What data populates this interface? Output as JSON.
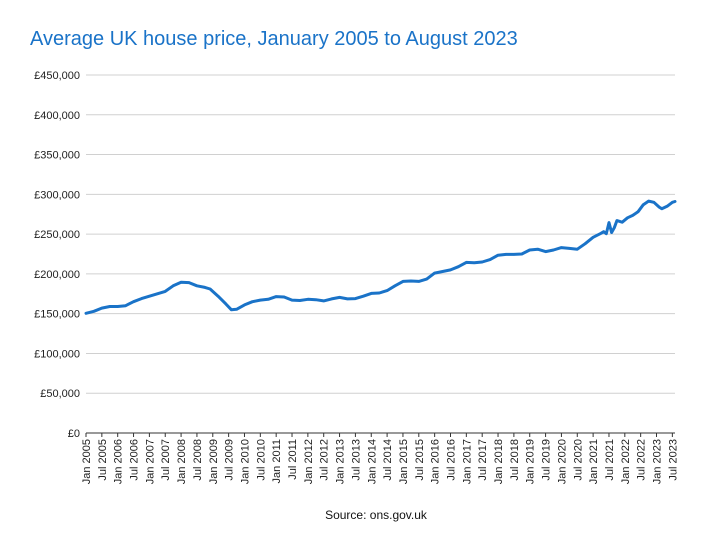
{
  "chart_data": {
    "type": "line",
    "title": "Average UK house price, January 2005 to August 2023",
    "source": "Source: ons.gov.uk",
    "xlabel": "",
    "ylabel": "",
    "ylim": [
      0,
      450000
    ],
    "yticks": [
      0,
      50000,
      100000,
      150000,
      200000,
      250000,
      300000,
      350000,
      400000,
      450000
    ],
    "ytick_labels": [
      "£0",
      "£50,000",
      "£100,000",
      "£150,000",
      "£200,000",
      "£250,000",
      "£300,000",
      "£350,000",
      "£400,000",
      "£450,000"
    ],
    "xlim_months": [
      0,
      223
    ],
    "xticks": [
      {
        "label": "Jan 2005",
        "month": 0
      },
      {
        "label": "Jul 2005",
        "month": 6
      },
      {
        "label": "Jan 2006",
        "month": 12
      },
      {
        "label": "Jul 2006",
        "month": 18
      },
      {
        "label": "Jan 2007",
        "month": 24
      },
      {
        "label": "Jul 2007",
        "month": 30
      },
      {
        "label": "Jan 2008",
        "month": 36
      },
      {
        "label": "Jul 2008",
        "month": 42
      },
      {
        "label": "Jan 2009",
        "month": 48
      },
      {
        "label": "Jul 2009",
        "month": 54
      },
      {
        "label": "Jan 2010",
        "month": 60
      },
      {
        "label": "Jul 2010",
        "month": 66
      },
      {
        "label": "Jan 2011",
        "month": 72
      },
      {
        "label": "Jul 2011",
        "month": 78
      },
      {
        "label": "Jan 2012",
        "month": 84
      },
      {
        "label": "Jul 2012",
        "month": 90
      },
      {
        "label": "Jan 2013",
        "month": 96
      },
      {
        "label": "Jul 2013",
        "month": 102
      },
      {
        "label": "Jan 2014",
        "month": 108
      },
      {
        "label": "Jul 2014",
        "month": 114
      },
      {
        "label": "Jan 2015",
        "month": 120
      },
      {
        "label": "Jul 2015",
        "month": 126
      },
      {
        "label": "Jan 2016",
        "month": 132
      },
      {
        "label": "Jul 2016",
        "month": 138
      },
      {
        "label": "Jan 2017",
        "month": 144
      },
      {
        "label": "Jul 2017",
        "month": 150
      },
      {
        "label": "Jan 2018",
        "month": 156
      },
      {
        "label": "Jul 2018",
        "month": 162
      },
      {
        "label": "Jan 2019",
        "month": 168
      },
      {
        "label": "Jul 2019",
        "month": 174
      },
      {
        "label": "Jan 2020",
        "month": 180
      },
      {
        "label": "Jul 2020",
        "month": 186
      },
      {
        "label": "Jan 2021",
        "month": 192
      },
      {
        "label": "Jul 2021",
        "month": 198
      },
      {
        "label": "Jan 2022",
        "month": 204
      },
      {
        "label": "Jul 2022",
        "month": 210
      },
      {
        "label": "Jan 2023",
        "month": 216
      },
      {
        "label": "Jul 2023",
        "month": 222
      }
    ],
    "grid": true,
    "line_color": "#1a73c8",
    "series": [
      {
        "name": "Average UK house price",
        "points": [
          [
            0,
            150500
          ],
          [
            3,
            153000
          ],
          [
            6,
            157000
          ],
          [
            9,
            159000
          ],
          [
            12,
            159000
          ],
          [
            15,
            160000
          ],
          [
            18,
            165000
          ],
          [
            21,
            169000
          ],
          [
            24,
            172000
          ],
          [
            27,
            175000
          ],
          [
            30,
            178000
          ],
          [
            33,
            185000
          ],
          [
            36,
            189500
          ],
          [
            39,
            189000
          ],
          [
            42,
            185000
          ],
          [
            45,
            183000
          ],
          [
            47,
            181000
          ],
          [
            50,
            172000
          ],
          [
            53,
            162000
          ],
          [
            55,
            155000
          ],
          [
            57,
            155500
          ],
          [
            60,
            161000
          ],
          [
            63,
            165000
          ],
          [
            66,
            167000
          ],
          [
            69,
            168000
          ],
          [
            72,
            171500
          ],
          [
            75,
            171000
          ],
          [
            78,
            167000
          ],
          [
            81,
            166500
          ],
          [
            84,
            168000
          ],
          [
            87,
            167500
          ],
          [
            90,
            166000
          ],
          [
            93,
            168500
          ],
          [
            96,
            170500
          ],
          [
            99,
            168500
          ],
          [
            102,
            169000
          ],
          [
            105,
            172000
          ],
          [
            108,
            175500
          ],
          [
            111,
            176000
          ],
          [
            114,
            179000
          ],
          [
            117,
            185000
          ],
          [
            120,
            190500
          ],
          [
            123,
            191000
          ],
          [
            126,
            190500
          ],
          [
            129,
            193500
          ],
          [
            132,
            201000
          ],
          [
            135,
            203000
          ],
          [
            138,
            205000
          ],
          [
            141,
            209000
          ],
          [
            144,
            214500
          ],
          [
            147,
            214000
          ],
          [
            150,
            215000
          ],
          [
            153,
            218000
          ],
          [
            156,
            223500
          ],
          [
            159,
            224500
          ],
          [
            162,
            224500
          ],
          [
            165,
            225000
          ],
          [
            168,
            230000
          ],
          [
            171,
            231000
          ],
          [
            174,
            228000
          ],
          [
            177,
            230000
          ],
          [
            180,
            233000
          ],
          [
            183,
            232000
          ],
          [
            186,
            231000
          ],
          [
            189,
            238000
          ],
          [
            192,
            246000
          ],
          [
            195,
            251000
          ],
          [
            196,
            253000
          ],
          [
            197,
            250500
          ],
          [
            198,
            264500
          ],
          [
            199,
            252000
          ],
          [
            200,
            258000
          ],
          [
            201,
            267000
          ],
          [
            203,
            265000
          ],
          [
            205,
            270500
          ],
          [
            207,
            273500
          ],
          [
            209,
            278000
          ],
          [
            211,
            287000
          ],
          [
            213,
            291500
          ],
          [
            215,
            290000
          ],
          [
            217,
            284000
          ],
          [
            218,
            282000
          ],
          [
            220,
            285000
          ],
          [
            222,
            290000
          ],
          [
            223,
            291000
          ]
        ]
      }
    ]
  }
}
